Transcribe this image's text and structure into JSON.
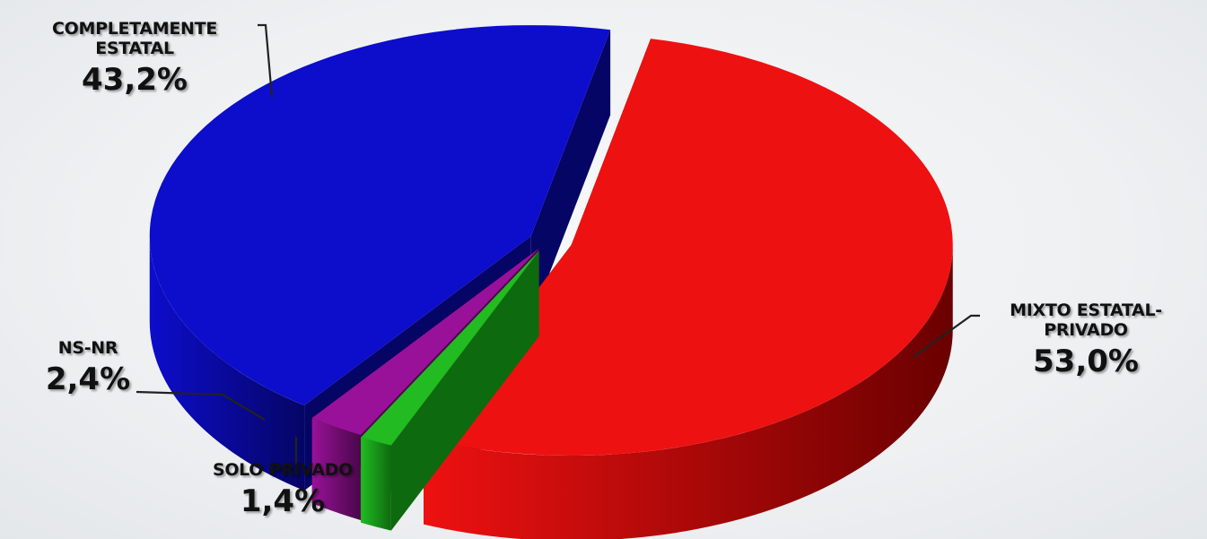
{
  "chart_data": {
    "type": "pie",
    "title": "",
    "slices": [
      {
        "label_line1": "MIXTO ESTATAL-",
        "label_line2": "PRIVADO",
        "value": 53.0,
        "value_label": "53,0%",
        "color": "#ee1111",
        "dark": "#6a0000"
      },
      {
        "label_line1": "SOLO PRIVADO",
        "label_line2": "",
        "value": 1.4,
        "value_label": "1,4%",
        "color": "#22bb22",
        "dark": "#0e6a0e"
      },
      {
        "label_line1": "NS-NR",
        "label_line2": "",
        "value": 2.4,
        "value_label": "2,4%",
        "color": "#991199",
        "dark": "#4a074a"
      },
      {
        "label_line1": "COMPLETAMENTE",
        "label_line2": "ESTATAL",
        "value": 43.2,
        "value_label": "43,2%",
        "color": "#0d0dcc",
        "dark": "#050566"
      }
    ]
  }
}
